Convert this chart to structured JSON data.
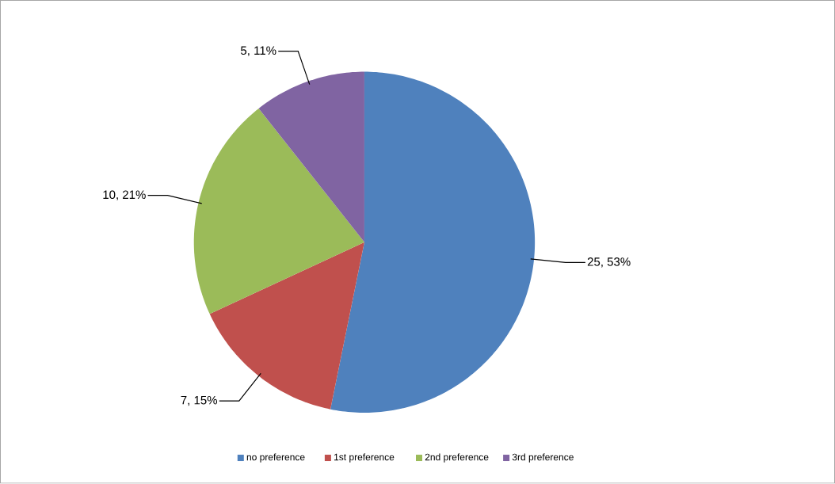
{
  "chart_data": {
    "type": "pie",
    "categories": [
      "no preference",
      "1st preference",
      "2nd preference",
      "3rd preference"
    ],
    "values": [
      25,
      7,
      10,
      5
    ],
    "colors": [
      "#4f81bd",
      "#c0504d",
      "#9bbb59",
      "#8064a2"
    ],
    "value_labels": [
      "25, 53%",
      "7, 15%",
      "10, 21%",
      "5, 11%"
    ],
    "legend": "bottom"
  }
}
